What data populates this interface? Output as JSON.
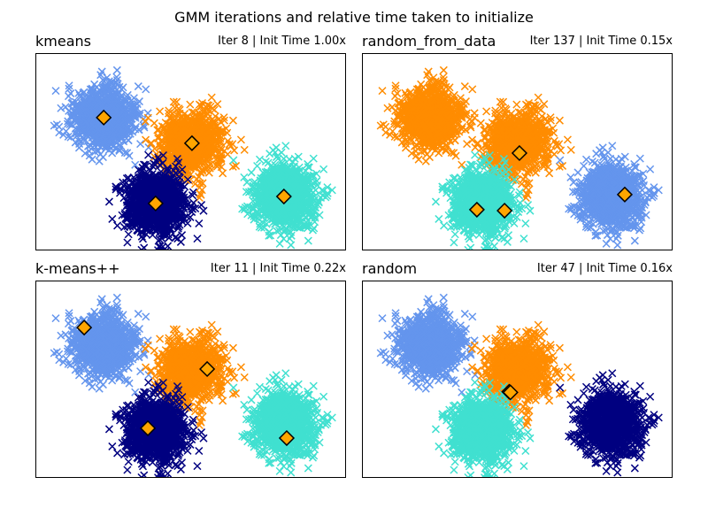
{
  "chart_data": [
    {
      "type": "scatter",
      "title": "kmeans",
      "subtitle": "Iter 8 | Init Time 1.00x",
      "blob_colors": [
        "#6495ed",
        "#ff8c00",
        "#000080",
        "#40e0d0"
      ],
      "means": [
        [
          2.2,
          4.04
        ],
        [
          5.04,
          3.26
        ],
        [
          3.87,
          1.43
        ],
        [
          8.0,
          1.64
        ]
      ]
    },
    {
      "type": "scatter",
      "title": "random_from_data",
      "subtitle": "Iter 137 | Init Time 0.15x",
      "blob_colors": [
        "#ff8c00",
        "#ff8c00",
        "#40e0d0",
        "#6495ed"
      ],
      "means": [
        [
          5.07,
          2.96
        ],
        [
          3.7,
          1.24
        ],
        [
          4.59,
          1.21
        ],
        [
          8.46,
          1.7
        ]
      ]
    },
    {
      "type": "scatter",
      "title": "k-means++",
      "subtitle": "Iter 11 | Init Time 0.22x",
      "blob_colors": [
        "#6495ed",
        "#ff8c00",
        "#000080",
        "#40e0d0"
      ],
      "means": [
        [
          1.57,
          4.57
        ],
        [
          5.53,
          3.31
        ],
        [
          3.62,
          1.51
        ],
        [
          8.09,
          1.21
        ]
      ]
    },
    {
      "type": "scatter",
      "title": "random",
      "subtitle": "Iter 47 | Init Time 0.16x",
      "blob_colors": [
        "#6495ed",
        "#ff8c00",
        "#40e0d0",
        "#000080"
      ],
      "means": [
        [
          4.74,
          2.62
        ],
        [
          4.78,
          2.6
        ]
      ]
    }
  ],
  "suptitle": "GMM iterations and relative time taken to initialize",
  "blobs": {
    "centers": [
      [
        2.2,
        4.04
      ],
      [
        5.0,
        3.26
      ],
      [
        3.87,
        1.43
      ],
      [
        8.0,
        1.64
      ]
    ],
    "std": 0.5,
    "n_per_blob": 1000
  },
  "xlim": [
    0,
    10
  ],
  "ylim": [
    0,
    6
  ],
  "grid": false,
  "ticks": false,
  "mean_marker_color": "#ffa500"
}
